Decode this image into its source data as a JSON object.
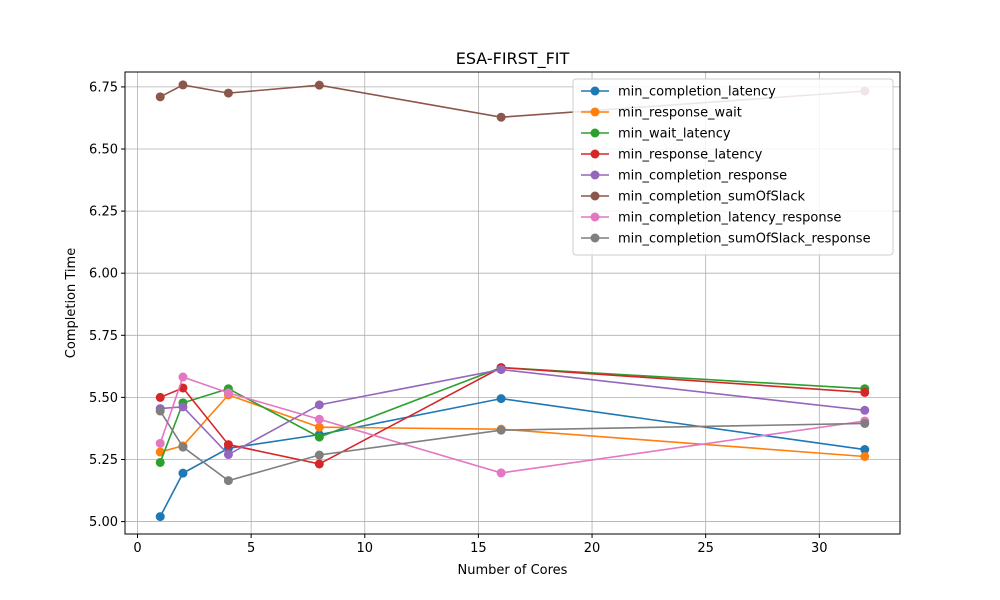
{
  "chart_data": {
    "type": "line",
    "title": "ESA-FIRST_FIT",
    "xlabel": "Number of Cores",
    "ylabel": "Completion Time",
    "x": [
      1,
      2,
      4,
      8,
      16,
      32
    ],
    "xlim": [
      -0.55,
      33.55
    ],
    "ylim": [
      4.95,
      6.81
    ],
    "xticks": [
      0,
      5,
      10,
      15,
      20,
      25,
      30
    ],
    "xtick_labels": [
      "0",
      "5",
      "10",
      "15",
      "20",
      "25",
      "30"
    ],
    "yticks": [
      5.0,
      5.25,
      5.5,
      5.75,
      6.0,
      6.25,
      6.5,
      6.75
    ],
    "ytick_labels": [
      "5.00",
      "5.25",
      "5.50",
      "5.75",
      "6.00",
      "6.25",
      "6.50",
      "6.75"
    ],
    "grid": true,
    "legend_position": "top-right",
    "series": [
      {
        "name": "min_completion_latency",
        "color": "#1f77b4",
        "values": [
          5.02,
          5.195,
          5.295,
          5.35,
          5.495,
          5.29
        ]
      },
      {
        "name": "min_response_wait",
        "color": "#ff7f0e",
        "values": [
          5.28,
          5.305,
          5.51,
          5.38,
          5.372,
          5.262
        ]
      },
      {
        "name": "min_wait_latency",
        "color": "#2ca02c",
        "values": [
          5.238,
          5.478,
          5.535,
          5.34,
          5.62,
          5.535
        ]
      },
      {
        "name": "min_response_latency",
        "color": "#d62728",
        "values": [
          5.5,
          5.538,
          5.31,
          5.232,
          5.62,
          5.52
        ]
      },
      {
        "name": "min_completion_response",
        "color": "#9467bd",
        "values": [
          5.455,
          5.462,
          5.27,
          5.47,
          5.612,
          5.448
        ]
      },
      {
        "name": "min_completion_sumOfSlack",
        "color": "#8c564b",
        "values": [
          6.71,
          6.758,
          6.725,
          6.757,
          6.628,
          6.733
        ]
      },
      {
        "name": "min_completion_latency_response",
        "color": "#e377c2",
        "values": [
          5.315,
          5.582,
          5.518,
          5.412,
          5.196,
          5.405
        ]
      },
      {
        "name": "min_completion_sumOfSlack_response",
        "color": "#7f7f7f",
        "values": [
          5.445,
          5.3,
          5.165,
          5.268,
          5.368,
          5.395
        ]
      }
    ]
  }
}
